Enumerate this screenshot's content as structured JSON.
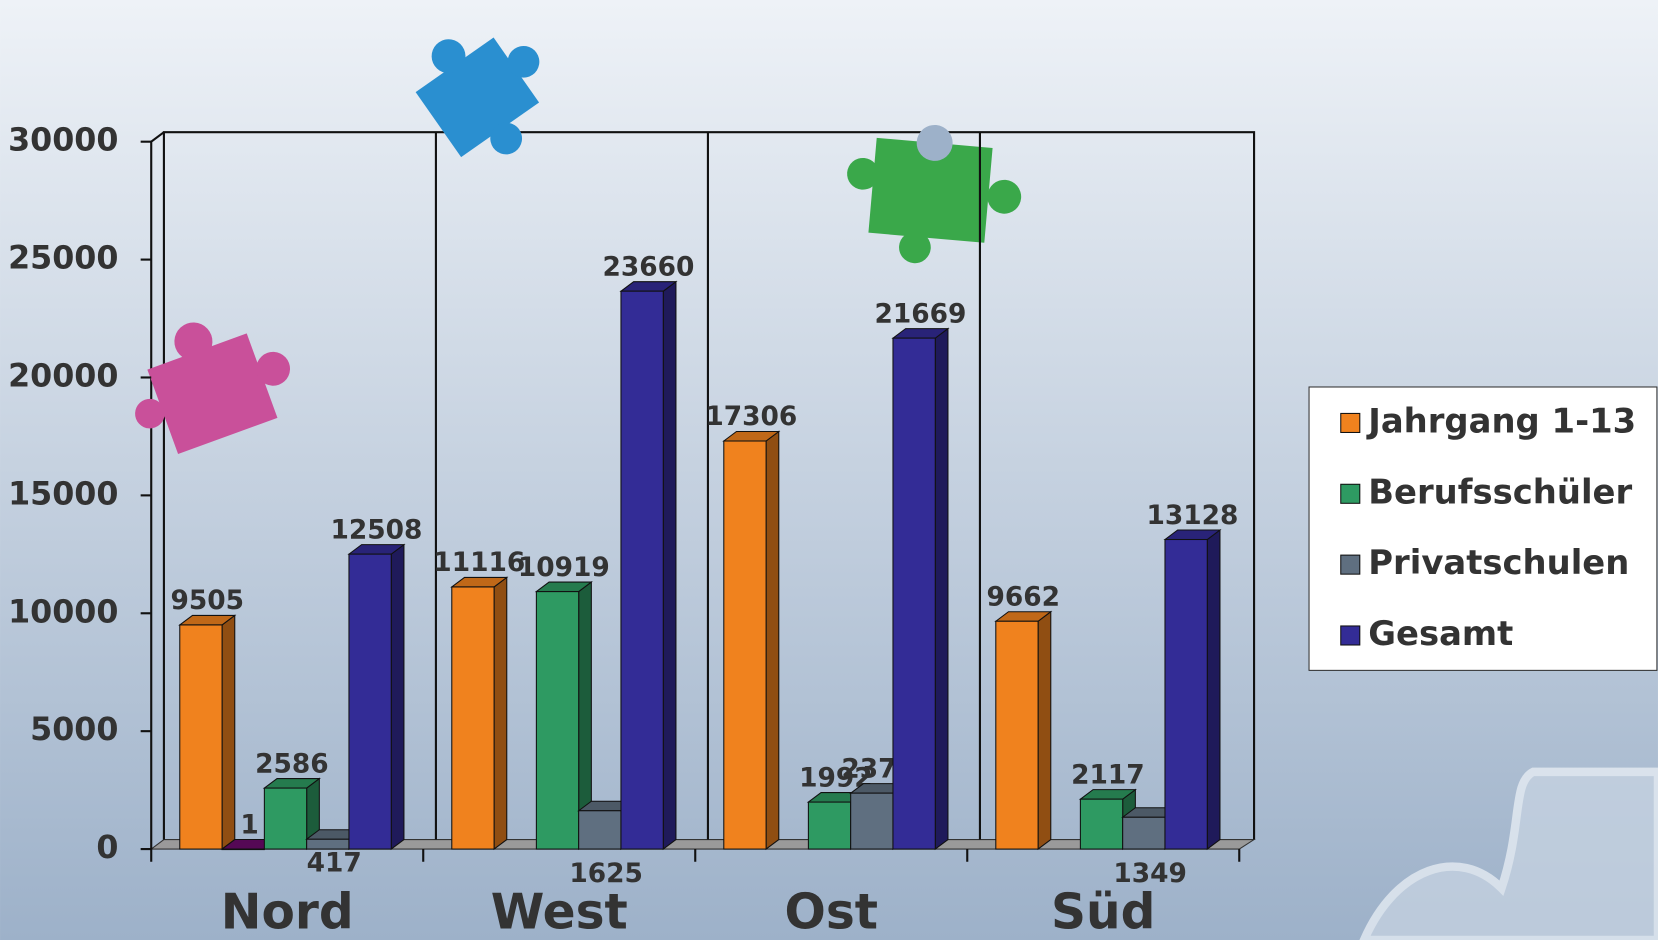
{
  "chart_data": {
    "type": "bar",
    "categories": [
      "Nord",
      "West",
      "Ost",
      "Süd"
    ],
    "series": [
      {
        "name": "Jahrgang 1-13",
        "color": "#f0821e",
        "values": [
          9505,
          11116,
          17306,
          9662
        ]
      },
      {
        "color": "#6a0a6a",
        "values": [
          1,
          null,
          null,
          null
        ]
      },
      {
        "name": "Berufsschüler",
        "color": "#2e9a62",
        "values": [
          2586,
          10919,
          1992,
          2117
        ]
      },
      {
        "name": "Privatschulen",
        "color": "#5f6f80",
        "values": [
          417,
          1625,
          2371,
          1349
        ]
      },
      {
        "name": "Gesamt",
        "color": "#332c96",
        "values": [
          12508,
          23660,
          21669,
          13128
        ]
      }
    ],
    "ylim": [
      0,
      30000
    ],
    "yticks": [
      0,
      5000,
      10000,
      15000,
      20000,
      25000,
      30000
    ],
    "legend": "right"
  }
}
